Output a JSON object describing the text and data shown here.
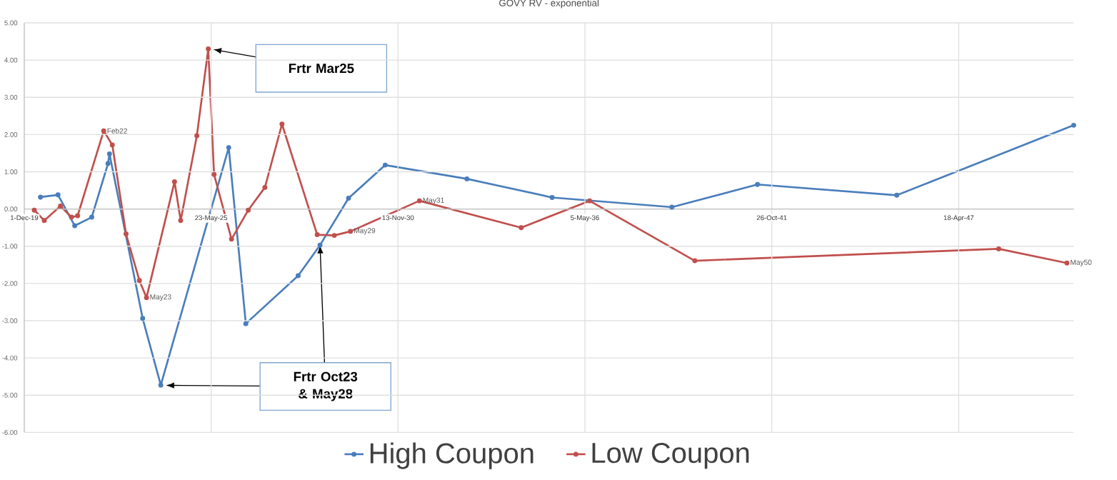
{
  "chart_data": {
    "type": "line",
    "title": "GOVY RV - exponential",
    "xlim": [
      "2019-12-01",
      "2050-08-31"
    ],
    "xticks": [
      {
        "value": "2019-12-01",
        "label": "1-Dec-19"
      },
      {
        "value": "2025-05-23",
        "label": "23-May-25"
      },
      {
        "value": "2030-11-13",
        "label": "13-Nov-30"
      },
      {
        "value": "2036-05-05",
        "label": "5-May-36"
      },
      {
        "value": "2041-10-26",
        "label": "26-Oct-41"
      },
      {
        "value": "2047-04-18",
        "label": "18-Apr-47"
      }
    ],
    "ylim": [
      -6,
      5
    ],
    "yticks": [
      {
        "value": -6,
        "label": "-6.00"
      },
      {
        "value": -5,
        "label": "-5.00"
      },
      {
        "value": -4,
        "label": "-4.00"
      },
      {
        "value": -3,
        "label": "-3.00"
      },
      {
        "value": -2,
        "label": "-2.00"
      },
      {
        "value": -1,
        "label": "-1.00"
      },
      {
        "value": 0,
        "label": "0.00"
      },
      {
        "value": 1,
        "label": "1.00"
      },
      {
        "value": 2,
        "label": "2.00"
      },
      {
        "value": 3,
        "label": "3.00"
      },
      {
        "value": 4,
        "label": "4.00"
      },
      {
        "value": 5,
        "label": "5.00"
      }
    ],
    "grid": true,
    "legend": "bottom",
    "marker": "circle",
    "series": [
      {
        "name": "High Coupon",
        "color": "#4a7ebb",
        "x": [
          "2020-05-22",
          "2020-11-26",
          "2021-05-24",
          "2021-11-22",
          "2022-05-15",
          "2022-05-31",
          "2023-05-21",
          "2023-12-01",
          "2025-11-27",
          "2026-05-29",
          "2027-12-10",
          "2028-07-31",
          "2029-06-01",
          "2030-06-29",
          "2032-11-19",
          "2035-05-20",
          "2038-11-22",
          "2041-05-26",
          "2045-06-25",
          "2050-08-31"
        ],
        "values": [
          0.32,
          0.38,
          -0.45,
          -0.22,
          1.22,
          1.48,
          -2.94,
          -4.73,
          1.65,
          -3.08,
          -1.79,
          -0.97,
          0.29,
          1.18,
          0.81,
          0.31,
          0.05,
          0.66,
          0.37,
          2.25
        ]
      },
      {
        "name": "Low Coupon",
        "color": "#c0504d",
        "x": [
          "2020-03-17",
          "2020-07-02",
          "2020-12-22",
          "2021-04-19",
          "2021-06-24",
          "2022-03-30",
          "2022-06-30",
          "2022-11-24",
          "2023-04-16",
          "2023-07-01",
          "2024-04-26",
          "2024-07-01",
          "2024-12-21",
          "2025-04-22",
          "2025-06-23",
          "2025-12-27",
          "2026-06-24",
          "2026-12-19",
          "2027-06-20",
          "2028-07-01",
          "2028-12-31",
          "2029-06-22",
          "2031-06-30",
          "2034-06-23",
          "2036-06-24",
          "2039-07-25",
          "2048-06-20",
          "2050-06-20"
        ],
        "values": [
          -0.03,
          -0.31,
          0.08,
          -0.22,
          -0.18,
          2.1,
          1.72,
          -0.67,
          -1.92,
          -2.38,
          0.73,
          -0.31,
          1.97,
          4.3,
          0.93,
          -0.81,
          -0.03,
          0.58,
          2.28,
          -0.69,
          -0.71,
          -0.6,
          0.22,
          -0.5,
          0.22,
          -1.39,
          -1.07,
          -1.45
        ]
      }
    ],
    "annotations": [
      {
        "text": "Feb22",
        "x": "2022-03-30",
        "y": 2.1
      },
      {
        "text": "May23",
        "x": "2023-07-01",
        "y": -2.38
      },
      {
        "text": "May29",
        "x": "2029-06-22",
        "y": -0.6
      },
      {
        "text": "May31",
        "x": "2031-06-30",
        "y": 0.22
      },
      {
        "text": "May50",
        "x": "2050-06-20",
        "y": -1.45
      },
      "Frtr Mar25",
      {
        "text": "Frtr Oct23 & May28",
        "x": "2028-07-31",
        "y": -0.97
      }
    ]
  }
}
